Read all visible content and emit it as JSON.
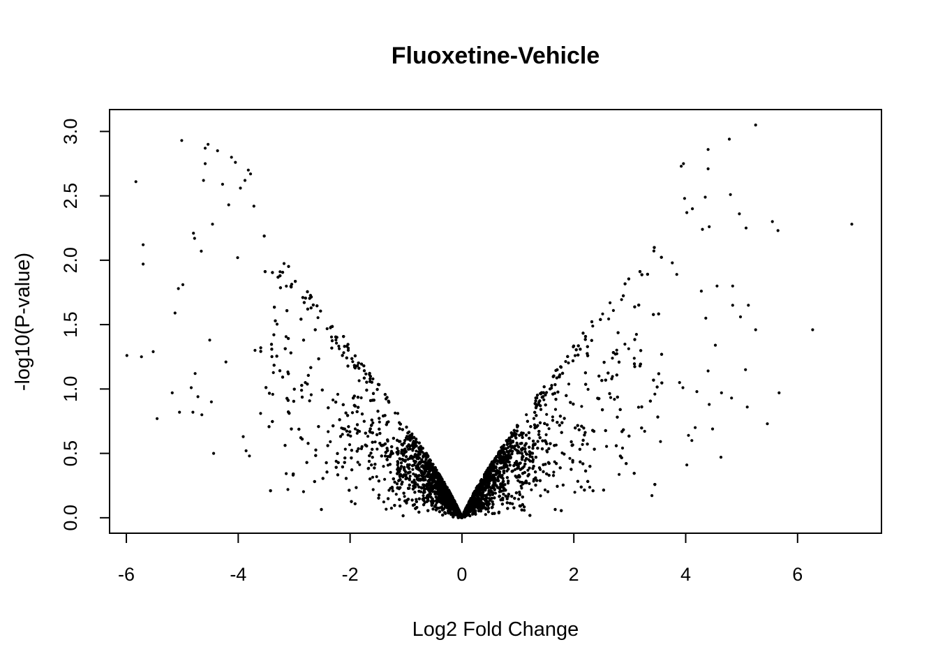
{
  "chart_data": {
    "type": "scatter",
    "title": "Fluoxetine-Vehicle",
    "xlabel": "Log2 Fold Change",
    "ylabel": "-log10(P-value)",
    "xlim": [
      -6.3,
      7.5
    ],
    "ylim": [
      -0.12,
      3.17
    ],
    "xticks": [
      -6,
      -4,
      -2,
      0,
      2,
      4,
      6
    ],
    "xtick_labels": [
      "-6",
      "-4",
      "-2",
      "0",
      "2",
      "4",
      "6"
    ],
    "yticks": [
      0,
      0.5,
      1,
      1.5,
      2,
      2.5,
      3
    ],
    "ytick_labels": [
      "0.0",
      "0.5",
      "1.0",
      "1.5",
      "2.0",
      "2.5",
      "3.0"
    ],
    "grid": false,
    "legend": false,
    "marker_color": "#000000",
    "series": [
      {
        "points": [
          [
            -5.99,
            1.26
          ],
          [
            -5.83,
            2.61
          ],
          [
            -5.73,
            1.25
          ],
          [
            -5.7,
            2.12
          ],
          [
            -5.7,
            1.97
          ],
          [
            -5.52,
            1.29
          ],
          [
            -5.45,
            0.77
          ],
          [
            -5.18,
            0.97
          ],
          [
            -5.13,
            1.59
          ],
          [
            -5.07,
            1.78
          ],
          [
            -5.05,
            0.82
          ],
          [
            -5.01,
            2.93
          ],
          [
            -4.99,
            1.81
          ],
          [
            -4.84,
            1.01
          ],
          [
            -4.81,
            0.82
          ],
          [
            -4.8,
            2.21
          ],
          [
            -4.78,
            2.17
          ],
          [
            -4.77,
            1.12
          ],
          [
            -4.72,
            0.94
          ],
          [
            -4.66,
            2.07
          ],
          [
            -4.65,
            0.8
          ],
          [
            -4.62,
            2.62
          ],
          [
            -4.59,
            2.75
          ],
          [
            -4.59,
            2.87
          ],
          [
            -4.54,
            2.9
          ],
          [
            -4.51,
            1.38
          ],
          [
            -4.48,
            0.9
          ],
          [
            -4.46,
            2.28
          ],
          [
            -4.44,
            0.5
          ],
          [
            -4.37,
            2.85
          ],
          [
            -4.28,
            2.59
          ],
          [
            -4.22,
            1.21
          ],
          [
            -4.17,
            2.43
          ],
          [
            -4.12,
            2.8
          ],
          [
            -4.05,
            2.76
          ],
          [
            -4.01,
            2.02
          ],
          [
            -3.96,
            2.56
          ],
          [
            -3.88,
            2.62
          ],
          [
            -3.82,
            2.7
          ],
          [
            -3.78,
            2.67
          ],
          [
            -3.72,
            2.42
          ],
          [
            -3.86,
            0.52
          ],
          [
            -3.8,
            0.48
          ],
          [
            -3.91,
            0.63
          ],
          [
            -3.7,
            1.3
          ],
          [
            -3.6,
            0.81
          ]
        ]
      },
      {
        "points": [
          [
            4.4,
            2.86
          ],
          [
            4.4,
            2.71
          ],
          [
            4.78,
            2.94
          ],
          [
            5.25,
            3.05
          ],
          [
            5.08,
            2.25
          ],
          [
            5.55,
            2.3
          ],
          [
            5.65,
            2.23
          ],
          [
            6.97,
            2.28
          ],
          [
            6.27,
            1.46
          ],
          [
            5.25,
            1.46
          ],
          [
            5.67,
            0.97
          ],
          [
            5.12,
            1.65
          ],
          [
            5.46,
            0.73
          ],
          [
            5.1,
            0.86
          ],
          [
            5.07,
            1.15
          ],
          [
            4.96,
            2.36
          ],
          [
            4.8,
            2.51
          ],
          [
            4.84,
            1.8
          ],
          [
            4.84,
            1.65
          ],
          [
            4.98,
            1.56
          ],
          [
            4.63,
            0.47
          ],
          [
            4.64,
            0.97
          ],
          [
            4.53,
            1.34
          ],
          [
            4.56,
            1.8
          ],
          [
            4.4,
            1.14
          ],
          [
            4.3,
            2.24
          ],
          [
            4.35,
            2.49
          ],
          [
            4.42,
            2.26
          ],
          [
            4.36,
            1.55
          ],
          [
            4.28,
            1.76
          ],
          [
            4.17,
            0.7
          ],
          [
            4.02,
            0.41
          ],
          [
            4.05,
            0.64
          ],
          [
            4.11,
            0.6
          ],
          [
            3.96,
            2.75
          ],
          [
            3.92,
            2.73
          ],
          [
            3.98,
            2.48
          ],
          [
            4.12,
            2.4
          ],
          [
            4.02,
            2.37
          ],
          [
            3.76,
            1.98
          ],
          [
            3.84,
            1.89
          ],
          [
            3.95,
            1.01
          ],
          [
            4.2,
            0.98
          ],
          [
            3.89,
            1.05
          ],
          [
            4.82,
            0.93
          ],
          [
            4.42,
            0.88
          ],
          [
            4.48,
            0.69
          ]
        ]
      }
    ]
  }
}
